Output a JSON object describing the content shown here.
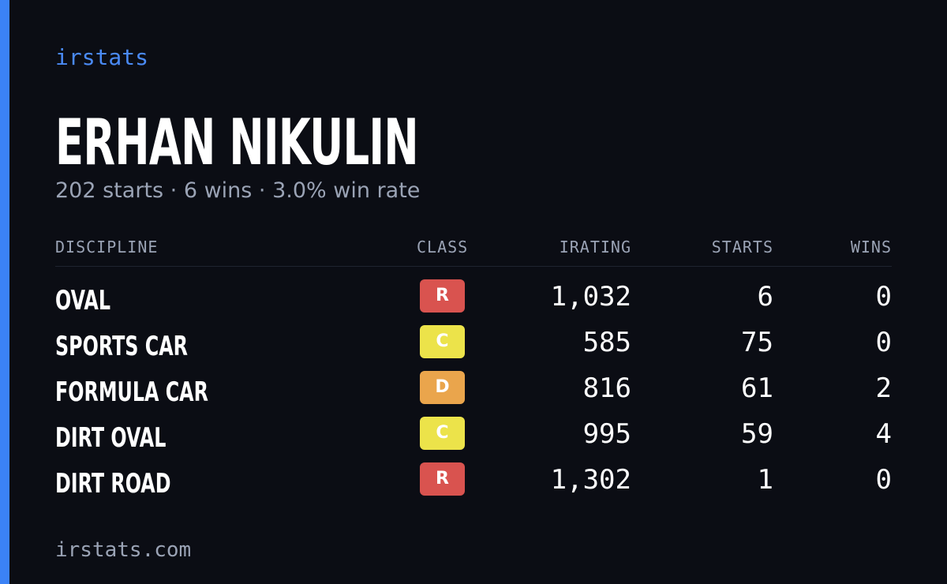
{
  "brand": "irstats",
  "driver": {
    "name": "ERHAN NIKULIN",
    "summary": "202 starts · 6 wins · 3.0% win rate"
  },
  "table": {
    "headers": [
      "DISCIPLINE",
      "CLASS",
      "IRATING",
      "STARTS",
      "WINS"
    ],
    "rows": [
      {
        "discipline": "OVAL",
        "class": "R",
        "class_color": "#d9534f",
        "irating": "1,032",
        "starts": "6",
        "wins": "0"
      },
      {
        "discipline": "SPORTS CAR",
        "class": "C",
        "class_color": "#ece34a",
        "irating": "585",
        "starts": "75",
        "wins": "0"
      },
      {
        "discipline": "FORMULA CAR",
        "class": "D",
        "class_color": "#eaa54c",
        "irating": "816",
        "starts": "61",
        "wins": "2"
      },
      {
        "discipline": "DIRT OVAL",
        "class": "C",
        "class_color": "#ece34a",
        "irating": "995",
        "starts": "59",
        "wins": "4"
      },
      {
        "discipline": "DIRT ROAD",
        "class": "R",
        "class_color": "#d9534f",
        "irating": "1,302",
        "starts": "1",
        "wins": "0"
      }
    ]
  },
  "footer": "irstats.com"
}
